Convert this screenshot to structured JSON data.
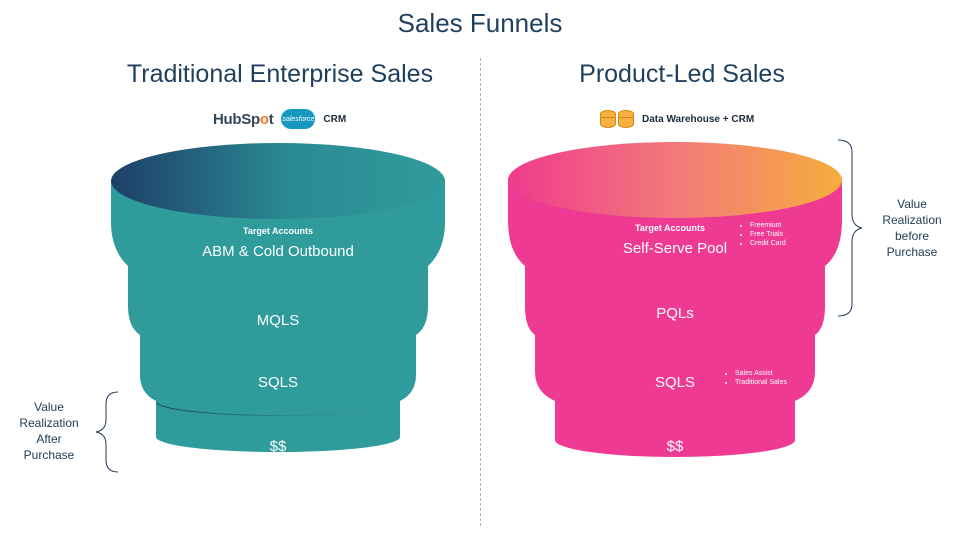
{
  "title": "Sales Funnels",
  "left": {
    "heading": "Traditional Enterprise Sales",
    "logos": {
      "hubspot_a": "HubSp",
      "hubspot_o": "o",
      "hubspot_b": "t",
      "salesforce": "salesforce",
      "crm": "CRM"
    },
    "stages": [
      {
        "sub": "Target Accounts",
        "label": "ABM & Cold Outbound"
      },
      {
        "label": "MQLS"
      },
      {
        "label": "SQLS"
      },
      {
        "label": "$$"
      }
    ],
    "note": [
      "Value",
      "Realization",
      "After",
      "Purchase"
    ]
  },
  "right": {
    "heading": "Product-Led Sales",
    "logos": {
      "dw": "Data Warehouse + CRM"
    },
    "stages": [
      {
        "sub": "Target Accounts",
        "label": "Self-Serve Pool",
        "bullets": [
          "Freemium",
          "Free Trials",
          "Credit Card"
        ]
      },
      {
        "label": "PQLs"
      },
      {
        "label": "SQLS",
        "bullets": [
          "Sales Assist",
          "Traditional Sales"
        ]
      },
      {
        "label": "$$"
      }
    ],
    "note": [
      "Value",
      "Realization",
      "before",
      "Purchase"
    ]
  },
  "colors": {
    "teal": "#2f9b9b",
    "teal_dark": "#1f3f66",
    "pink": "#f03a8e",
    "orange": "#f5a742"
  }
}
